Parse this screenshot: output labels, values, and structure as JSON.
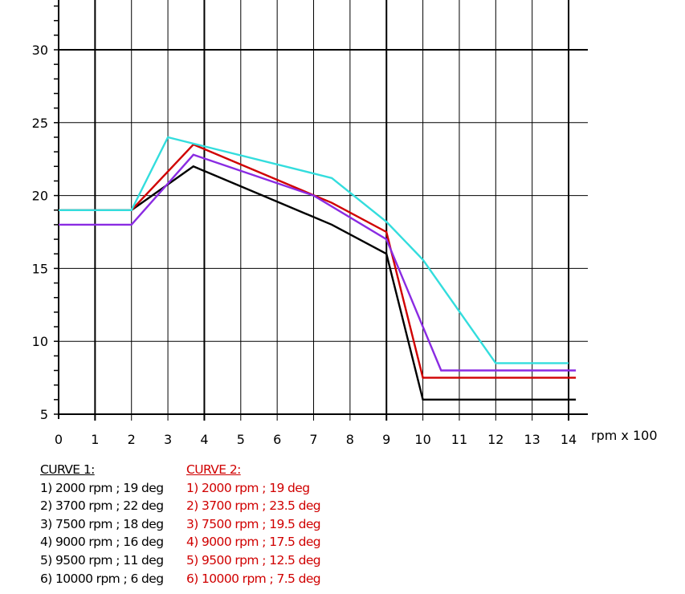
{
  "chart_data": {
    "type": "line",
    "title": "",
    "xlabel": "rpm x 100",
    "ylabel": "",
    "xlim": [
      0,
      14
    ],
    "ylim": [
      5,
      33
    ],
    "x_ticks": [
      "0",
      "1",
      "2",
      "3",
      "4",
      "5",
      "6",
      "7",
      "8",
      "9",
      "10",
      "11",
      "12",
      "13",
      "14"
    ],
    "y_ticks": [
      "5",
      "10",
      "15",
      "20",
      "25",
      "30"
    ],
    "grid": true,
    "series": [
      {
        "name": "black",
        "color": "#000000",
        "points": [
          [
            0,
            19
          ],
          [
            2,
            19
          ],
          [
            3.7,
            22
          ],
          [
            7.5,
            18
          ],
          [
            9,
            16
          ],
          [
            10,
            6
          ],
          [
            14.2,
            6
          ]
        ]
      },
      {
        "name": "red",
        "color": "#d00000",
        "points": [
          [
            0,
            19
          ],
          [
            2,
            19
          ],
          [
            3.7,
            23.5
          ],
          [
            7.5,
            19.5
          ],
          [
            9,
            17.5
          ],
          [
            10,
            7.5
          ],
          [
            14.2,
            7.5
          ]
        ]
      },
      {
        "name": "purple",
        "color": "#8a2be2",
        "points": [
          [
            0,
            18
          ],
          [
            2,
            18
          ],
          [
            3.7,
            22.8
          ],
          [
            7,
            20
          ],
          [
            9,
            17
          ],
          [
            10.5,
            8
          ],
          [
            14.2,
            8
          ]
        ]
      },
      {
        "name": "cyan",
        "color": "#33dddd",
        "points": [
          [
            0,
            19
          ],
          [
            2,
            19
          ],
          [
            3,
            24
          ],
          [
            7.5,
            21.2
          ],
          [
            9,
            18.2
          ],
          [
            10,
            15.6
          ],
          [
            12,
            8.5
          ],
          [
            14,
            8.5
          ]
        ]
      }
    ]
  },
  "legend": {
    "curve1": {
      "title": "CURVE 1:",
      "items": [
        "1) 2000 rpm ; 19 deg",
        "2) 3700 rpm ; 22 deg",
        "3) 7500 rpm ; 18 deg",
        "4) 9000 rpm ; 16 deg",
        "5) 9500 rpm ; 11 deg",
        "6) 10000 rpm ; 6 deg"
      ]
    },
    "curve2": {
      "title": "CURVE 2:",
      "items": [
        "1) 2000 rpm ; 19 deg",
        "2) 3700 rpm ; 23.5 deg",
        "3) 7500 rpm ; 19.5 deg",
        "4) 9000 rpm ; 17.5 deg",
        "5) 9500 rpm ; 12.5 deg",
        "6) 10000 rpm ; 7.5 deg"
      ]
    }
  }
}
